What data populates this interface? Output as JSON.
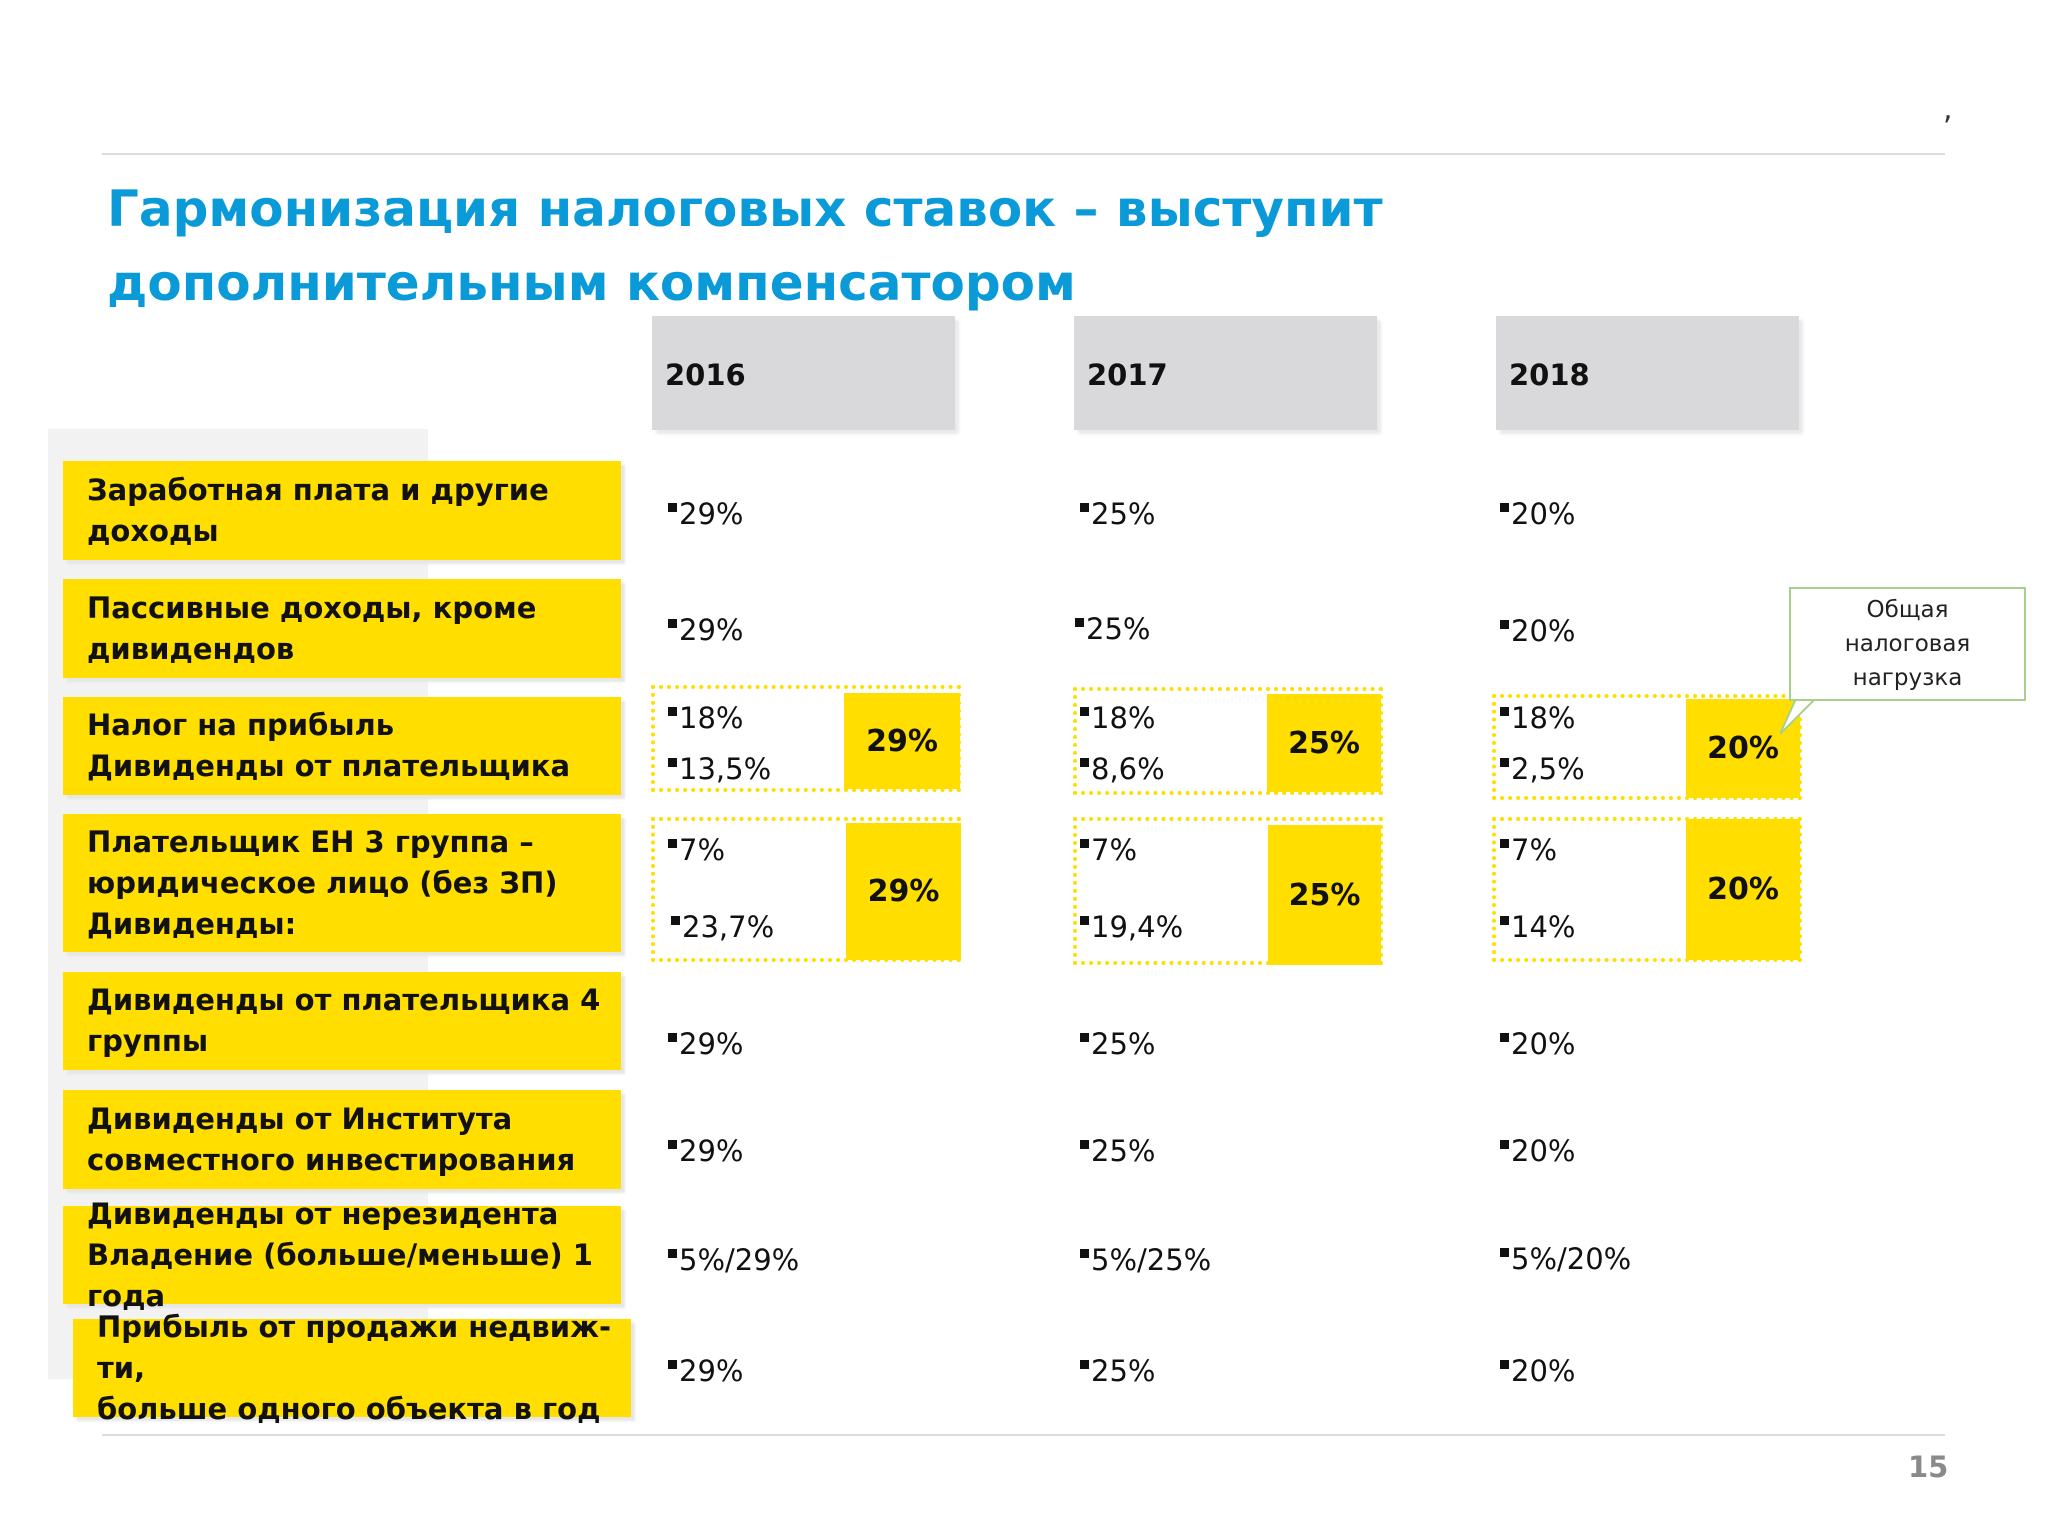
{
  "slide": {
    "top_mark": ",",
    "title": "Гармонизация налоговых ставок – выступит дополнительным компенсатором",
    "page_number": "15"
  },
  "years": [
    "2016",
    "2017",
    "2018"
  ],
  "rows": [
    {
      "label": "Заработная плата и другие доходы",
      "values": [
        "29%",
        "25%",
        "20%"
      ]
    },
    {
      "label": "Пассивные доходы, кроме\nдивидендов",
      "values": [
        "29%",
        "25%",
        "20%"
      ]
    },
    {
      "label": "Налог на прибыль\nДивиденды от плательщика",
      "values_top": [
        "18%",
        "18%",
        "18%"
      ],
      "values_bottom": [
        "13,5%",
        "8,6%",
        "2,5%"
      ],
      "totals": [
        "29%",
        "25%",
        "20%"
      ]
    },
    {
      "label": "Плательщик ЕН 3 группа –\nюридическое лицо (без ЗП)\nДивиденды:",
      "values_top": [
        "7%",
        "7%",
        "7%"
      ],
      "values_bottom": [
        "23,7%",
        "19,4%",
        "14%"
      ],
      "totals": [
        "29%",
        "25%",
        "20%"
      ]
    },
    {
      "label": "Дивиденды от плательщика 4\nгруппы",
      "values": [
        "29%",
        "25%",
        "20%"
      ]
    },
    {
      "label": "Дивиденды от Института\nсовместного инвестирования",
      "values": [
        "29%",
        "25%",
        "20%"
      ]
    },
    {
      "label": "Дивиденды от нерезидента\nВладение (больше/меньше) 1 года",
      "values": [
        "5%/29%",
        "5%/25%",
        "5%/20%"
      ]
    },
    {
      "label": "Прибыль от продажи недвиж-ти,\nбольше одного объекта в год",
      "values": [
        "29%",
        "25%",
        "20%"
      ]
    }
  ],
  "callout": {
    "text": "Общая\nналоговая\nнагрузка"
  },
  "colors": {
    "accent_yellow": "#ffde00",
    "title_blue": "#0a9ad8",
    "header_gray": "#d9d9db"
  }
}
